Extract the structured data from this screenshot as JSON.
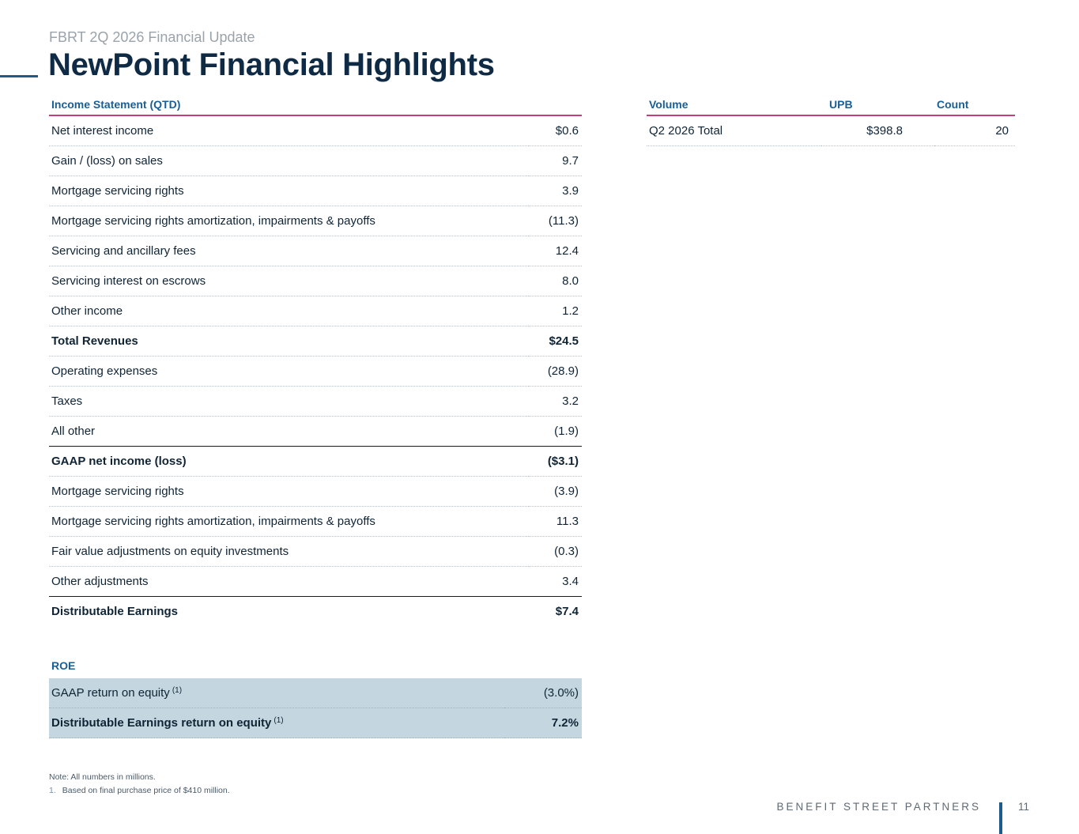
{
  "header": {
    "subtitle": "FBRT 2Q 2026 Financial Update",
    "title": "NewPoint Financial Highlights"
  },
  "income_statement": {
    "heading": "Income Statement (QTD)",
    "rows": [
      {
        "label": "Net interest income",
        "value": "$0.6"
      },
      {
        "label": "Gain / (loss) on sales",
        "value": "9.7"
      },
      {
        "label": "Mortgage servicing rights",
        "value": "3.9"
      },
      {
        "label": "Mortgage servicing rights amortization, impairments & payoffs",
        "value": "(11.3)"
      },
      {
        "label": "Servicing and ancillary fees",
        "value": "12.4"
      },
      {
        "label": "Servicing interest on escrows",
        "value": "8.0"
      },
      {
        "label": "Other income",
        "value": "1.2"
      },
      {
        "label": "Total Revenues",
        "value": "$24.5"
      },
      {
        "label": "Operating expenses",
        "value": "(28.9)"
      },
      {
        "label": "Taxes",
        "value": "3.2"
      },
      {
        "label": "All other",
        "value": "(1.9)"
      },
      {
        "label": "GAAP net income (loss)",
        "value": "($3.1)"
      },
      {
        "label": "Mortgage servicing rights",
        "value": "(3.9)"
      },
      {
        "label": "Mortgage servicing rights amortization, impairments & payoffs",
        "value": "11.3"
      },
      {
        "label": "Fair value adjustments on equity investments",
        "value": "(0.3)"
      },
      {
        "label": "Other adjustments",
        "value": "3.4"
      },
      {
        "label": "Distributable Earnings",
        "value": "$7.4"
      }
    ]
  },
  "volume": {
    "headers": {
      "volume": "Volume",
      "upb": "UPB",
      "count": "Count"
    },
    "rows": [
      {
        "label": "Q2 2026 Total",
        "upb": "$398.8",
        "count": "20"
      }
    ]
  },
  "roe": {
    "heading": "ROE",
    "rows": [
      {
        "label": "GAAP return on equity",
        "note": "(1)",
        "value": "(3.0%)"
      },
      {
        "label": "Distributable Earnings return on equity",
        "note": "(1)",
        "value": "7.2%"
      }
    ]
  },
  "notes": {
    "note": "Note: All numbers in millions.",
    "footnote_number": "1.",
    "footnote_text": "Based on final purchase price of $410 million."
  },
  "footer": {
    "brand": "BENEFIT STREET PARTNERS",
    "page_number": "11"
  },
  "colors": {
    "title": "#0f2a44",
    "header_text": "#1a5e96",
    "header_rule": "#c0407c",
    "roe_shade": "#c4d7e0",
    "accent": "#1d5b8c"
  }
}
